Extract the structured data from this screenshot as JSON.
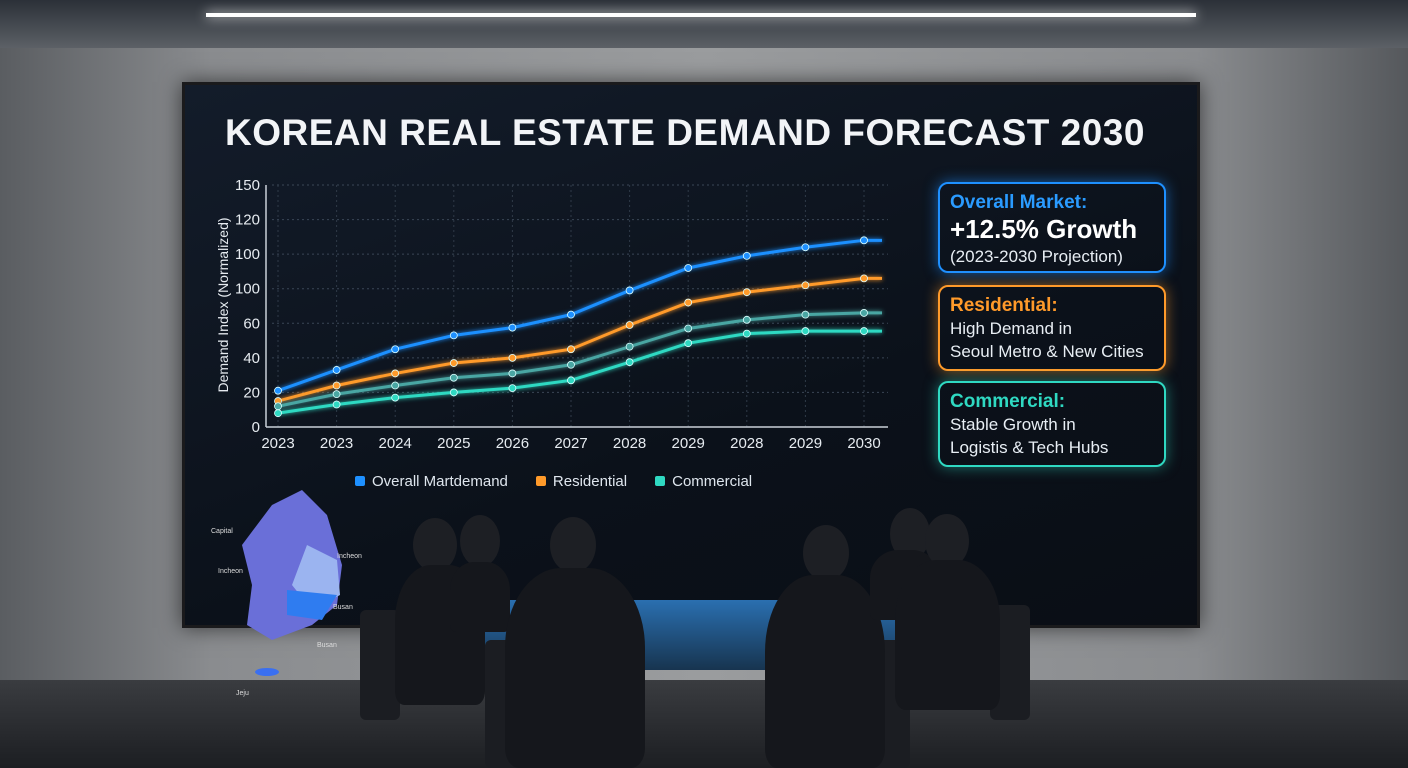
{
  "title": "KOREAN REAL ESTATE DEMAND FORECAST 2030",
  "cards": [
    {
      "heading": "Overall Market:",
      "big": "+12.5% Growth",
      "text": "(2023-2030 Projection)"
    },
    {
      "heading": "Residential:",
      "line1": "High Demand in",
      "line2": "Seoul Metro & New Cities"
    },
    {
      "heading": "Commercial:",
      "line1": "Stable Growth in",
      "line2": "Logistis & Tech Hubs"
    }
  ],
  "map_labels": [
    "Capital",
    "Incheon",
    "Incheon",
    "Busan",
    "Busan",
    "Jeju"
  ],
  "chart_data": {
    "type": "line",
    "title": "KOREAN REAL ESTATE DEMAND FORECAST 2030",
    "xlabel": "",
    "ylabel": "Demand Index (Normalized)",
    "categories": [
      "2023",
      "2023",
      "2024",
      "2025",
      "2026",
      "2027",
      "2028",
      "2029",
      "2028",
      "2029",
      "2030"
    ],
    "y_tick_labels": [
      "0",
      "20",
      "40",
      "60",
      "100",
      "100",
      "120",
      "150"
    ],
    "ylim": [
      0,
      140
    ],
    "grid": true,
    "legend_placement": "bottom",
    "series": [
      {
        "name": "Overall Martdemand",
        "color": "#1e90ff",
        "values": [
          21,
          33,
          45,
          53,
          57.5,
          65,
          79,
          92,
          99,
          104,
          108
        ]
      },
      {
        "name": "Residential",
        "color": "#ff9a2a",
        "values": [
          15,
          24,
          31,
          37,
          40,
          45,
          59,
          72,
          78,
          82,
          86
        ]
      },
      {
        "name": "",
        "color": "#4aa6a3",
        "values": [
          12,
          19,
          24,
          28.5,
          31,
          36,
          46.5,
          57,
          62,
          65,
          66
        ]
      },
      {
        "name": "Commercial",
        "color": "#2fd9c2",
        "values": [
          8,
          13,
          17,
          20,
          22.5,
          27,
          37.5,
          48.5,
          54,
          55.5,
          55.5
        ]
      }
    ]
  }
}
